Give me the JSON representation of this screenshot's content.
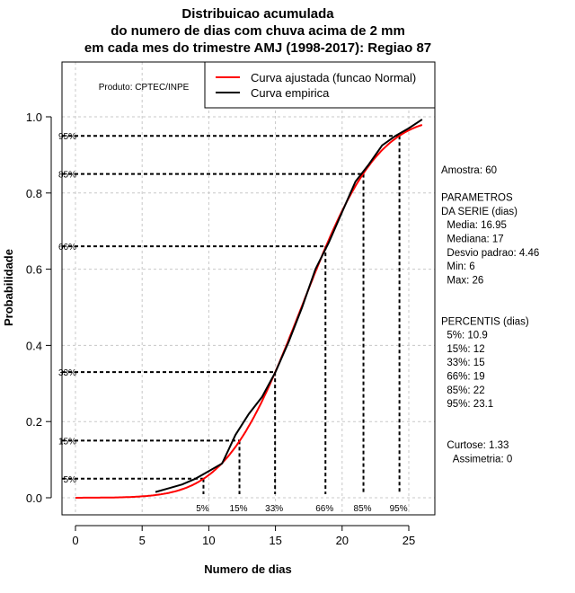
{
  "chart_data": {
    "type": "line",
    "title": [
      "Distribuicao acumulada",
      "do numero de dias com chuva acima de 2 mm",
      "em cada mes do trimestre AMJ (1998-2017): Regiao 87"
    ],
    "xlabel": "Numero de dias",
    "ylabel": "Probabilidade",
    "xlim": [
      -1,
      26.5
    ],
    "ylim": [
      -0.045,
      1.14
    ],
    "xticks": [
      0,
      5,
      10,
      15,
      20,
      25
    ],
    "yticks": [
      0.0,
      0.2,
      0.4,
      0.6,
      0.8,
      1.0
    ],
    "ytick_labels": [
      "0.0",
      "0.2",
      "0.4",
      "0.6",
      "0.8",
      "1.0"
    ],
    "grid": true,
    "credit": "Produto: CPTEC/INPE",
    "legend": {
      "placement": "top-right",
      "entries": [
        {
          "label": "Curva ajustada (funcao Normal)",
          "color": "#ff0000"
        },
        {
          "label": "Curva empirica",
          "color": "#000000"
        }
      ]
    },
    "series": [
      {
        "name": "Curva ajustada (funcao Normal)",
        "color": "#ff0000",
        "distribution": "normal",
        "mean": 16.95,
        "sd": 4.46,
        "x_range": [
          0,
          26
        ]
      },
      {
        "name": "Curva empirica",
        "color": "#000000",
        "x": [
          6,
          7,
          8,
          9,
          10,
          11,
          12,
          13,
          14,
          15,
          16,
          17,
          18,
          19,
          20,
          21,
          22,
          23,
          24,
          25,
          26
        ],
        "y": [
          0.015,
          0.025,
          0.035,
          0.05,
          0.07,
          0.09,
          0.165,
          0.22,
          0.265,
          0.33,
          0.41,
          0.5,
          0.6,
          0.67,
          0.75,
          0.83,
          0.875,
          0.925,
          0.95,
          0.97,
          0.993
        ]
      }
    ],
    "percentiles": [
      {
        "label": "5%",
        "p": 0.05,
        "x": 9.6
      },
      {
        "label": "15%",
        "p": 0.15,
        "x": 12.3
      },
      {
        "label": "33%",
        "p": 0.33,
        "x": 14.97
      },
      {
        "label": "66%",
        "p": 0.66,
        "x": 18.75
      },
      {
        "label": "85%",
        "p": 0.85,
        "x": 21.6
      },
      {
        "label": "95%",
        "p": 0.95,
        "x": 24.3
      }
    ],
    "stats_text": [
      "Amostra: 60",
      "",
      "PARAMETROS",
      "DA SERIE (dias)",
      "  Media: 16.95",
      "  Mediana: 17",
      "  Desvio padrao: 4.46",
      "  Min: 6",
      "  Max: 26",
      "",
      "",
      "PERCENTIS (dias)",
      "  5%: 10.9",
      "  15%: 12",
      "  33%: 15",
      "  66%: 19",
      "  85%: 22",
      "  95%: 23.1",
      "",
      "",
      "  Curtose: 1.33",
      "    Assimetria: 0"
    ]
  }
}
